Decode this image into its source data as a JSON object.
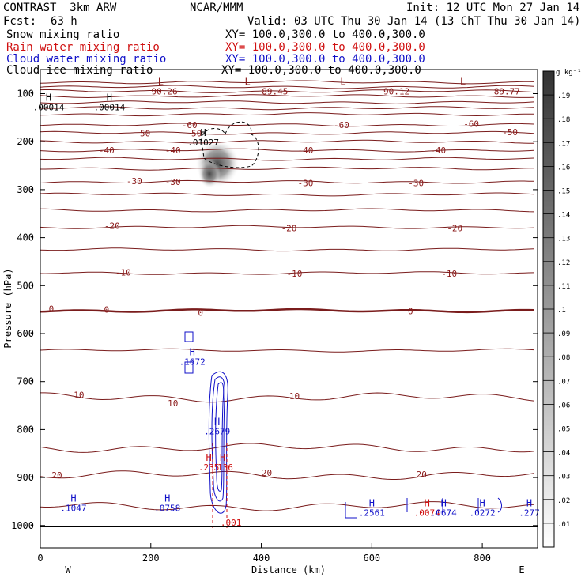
{
  "header": {
    "model": "CONTRAST  3km ARW",
    "center": "NCAR/MMM",
    "init": "Init: 12 UTC Mon 27 Jan 14",
    "fcst_label": "Fcst:",
    "fcst_value": "63 h",
    "valid": "Valid: 03 UTC Thu 30 Jan 14 (13 ChT Thu 30 Jan 14)"
  },
  "fields": [
    {
      "name": "Snow mixing ratio",
      "xy": "XY= 100.0,300.0 to 400.0,300.0",
      "color": "#000000"
    },
    {
      "name": "Rain water mixing ratio",
      "xy": "XY= 100.0,300.0 to 400.0,300.0",
      "color": "#d01010"
    },
    {
      "name": "Cloud water mixing ratio",
      "xy": "XY= 100.0,300.0 to 400.0,300.0",
      "color": "#1010c8"
    },
    {
      "name": "Cloud ice mixing ratio",
      "xy": "XY= 100.0,300.0 to 400.0,300.0",
      "color": "#000000"
    }
  ],
  "chart_data": {
    "type": "cross-section",
    "xlabel": "Distance (km)",
    "ylabel": "Pressure (hPa)",
    "xlim": [
      0,
      900
    ],
    "ylim": [
      1050,
      50
    ],
    "x_ticks": [
      0,
      200,
      400,
      600,
      800
    ],
    "y_ticks": [
      100,
      200,
      300,
      400,
      500,
      600,
      700,
      800,
      900,
      1000
    ],
    "x_end_labels": {
      "left": "W",
      "right": "E"
    },
    "colorbar": {
      "unit": "g kg⁻¹",
      "levels": [
        ".01",
        ".02",
        ".03",
        ".04",
        ".05",
        ".06",
        ".07",
        ".08",
        ".09",
        ".1",
        ".11",
        ".12",
        ".13",
        ".14",
        ".15",
        ".16",
        ".17",
        ".18",
        ".19"
      ]
    },
    "temperature_isotherms": [
      {
        "label": "-90.26",
        "x": 220,
        "p": 95
      },
      {
        "label": "-89.45",
        "x": 420,
        "p": 95
      },
      {
        "label": "-90.12",
        "x": 640,
        "p": 95
      },
      {
        "label": "-89.77",
        "x": 840,
        "p": 95
      },
      {
        "label": "-60",
        "x": 270,
        "p": 165
      },
      {
        "label": "-60",
        "x": 545,
        "p": 165
      },
      {
        "label": "-60",
        "x": 780,
        "p": 163
      },
      {
        "label": "-50",
        "x": 185,
        "p": 182
      },
      {
        "label": "-50",
        "x": 278,
        "p": 182
      },
      {
        "label": "-50",
        "x": 850,
        "p": 180
      },
      {
        "label": "-40",
        "x": 120,
        "p": 218
      },
      {
        "label": "-40",
        "x": 240,
        "p": 218
      },
      {
        "label": "-40",
        "x": 480,
        "p": 218
      },
      {
        "label": "-40",
        "x": 720,
        "p": 218
      },
      {
        "label": "-30",
        "x": 170,
        "p": 282
      },
      {
        "label": "-30",
        "x": 240,
        "p": 284
      },
      {
        "label": "-30",
        "x": 480,
        "p": 286
      },
      {
        "label": "-30",
        "x": 680,
        "p": 286
      },
      {
        "label": "-20",
        "x": 130,
        "p": 375
      },
      {
        "label": "-20",
        "x": 450,
        "p": 380
      },
      {
        "label": "-20",
        "x": 750,
        "p": 380
      },
      {
        "label": "-10",
        "x": 150,
        "p": 472
      },
      {
        "label": "-10",
        "x": 460,
        "p": 475
      },
      {
        "label": "-10",
        "x": 740,
        "p": 475
      },
      {
        "label": "0",
        "x": 20,
        "p": 548
      },
      {
        "label": "0",
        "x": 120,
        "p": 550
      },
      {
        "label": "0",
        "x": 290,
        "p": 556
      },
      {
        "label": "0",
        "x": 670,
        "p": 553
      },
      {
        "label": "10",
        "x": 70,
        "p": 728
      },
      {
        "label": "10",
        "x": 240,
        "p": 745
      },
      {
        "label": "10",
        "x": 460,
        "p": 730
      },
      {
        "label": "20",
        "x": 30,
        "p": 895
      },
      {
        "label": "20",
        "x": 410,
        "p": 890
      },
      {
        "label": "20",
        "x": 690,
        "p": 893
      }
    ],
    "isotherm_levels": [
      {
        "p": 76
      },
      {
        "p": 86
      },
      {
        "p": 95
      },
      {
        "p": 105
      },
      {
        "p": 118
      },
      {
        "p": 130
      },
      {
        "p": 143
      },
      {
        "p": 165
      },
      {
        "p": 182
      },
      {
        "p": 200
      },
      {
        "p": 218
      },
      {
        "p": 236
      },
      {
        "p": 256
      },
      {
        "p": 284
      },
      {
        "p": 310
      },
      {
        "p": 343
      },
      {
        "p": 378
      },
      {
        "p": 425
      },
      {
        "p": 474
      },
      {
        "p": 552
      },
      {
        "p": 635
      },
      {
        "p": 733
      },
      {
        "p": 838
      },
      {
        "p": 895
      },
      {
        "p": 960
      }
    ],
    "markers": [
      {
        "kind": "L",
        "x": 218,
        "p": 82,
        "color": "#8b1a1a"
      },
      {
        "kind": "L",
        "x": 375,
        "p": 82,
        "color": "#8b1a1a"
      },
      {
        "kind": "L",
        "x": 548,
        "p": 82,
        "color": "#8b1a1a"
      },
      {
        "kind": "L",
        "x": 765,
        "p": 82,
        "color": "#8b1a1a"
      },
      {
        "kind": "H",
        "x": 15,
        "p": 115,
        "value": ".00014",
        "color": "#000000"
      },
      {
        "kind": "H",
        "x": 125,
        "p": 115,
        "value": ".00014",
        "color": "#000000"
      },
      {
        "kind": "H",
        "x": 295,
        "p": 188,
        "value": ".01027",
        "color": "#000000"
      },
      {
        "kind": "H",
        "x": 275,
        "p": 645,
        "value": ".1672",
        "color": "#1010c8"
      },
      {
        "kind": "H",
        "x": 320,
        "p": 790,
        "value": ".2679",
        "color": "#1010c8"
      },
      {
        "kind": "H",
        "x": 305,
        "p": 865,
        "value": ".235",
        "color": "#d01010"
      },
      {
        "kind": "H",
        "x": 330,
        "p": 865,
        "value": ".136",
        "color": "#d01010"
      },
      {
        "kind": "H",
        "x": 60,
        "p": 950,
        "value": ".1047",
        "color": "#1010c8"
      },
      {
        "kind": "H",
        "x": 230,
        "p": 950,
        "value": ".0758",
        "color": "#1010c8"
      },
      {
        "kind": "H",
        "x": 600,
        "p": 960,
        "value": ".2561",
        "color": "#1010c8"
      },
      {
        "kind": "H",
        "x": 700,
        "p": 960,
        "value": ".0074",
        "color": "#d01010"
      },
      {
        "kind": "H",
        "x": 730,
        "p": 960,
        "value": ".0674",
        "color": "#1010c8"
      },
      {
        "kind": "H",
        "x": 800,
        "p": 960,
        "value": ".0272",
        "color": "#1010c8"
      },
      {
        "kind": "H",
        "x": 885,
        "p": 960,
        "value": ".277",
        "color": "#1010c8"
      },
      {
        "kind": "value",
        "x": 345,
        "p": 1000,
        "value": ".001",
        "color": "#d01010"
      }
    ]
  }
}
